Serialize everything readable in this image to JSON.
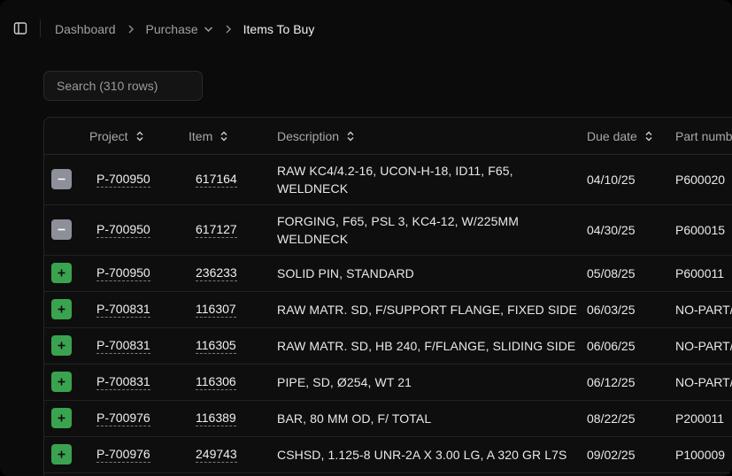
{
  "header": {
    "breadcrumb": {
      "dashboard": "Dashboard",
      "purchase": "Purchase",
      "current": "Items To Buy"
    }
  },
  "search": {
    "placeholder": "Search (310 rows)"
  },
  "table": {
    "columns": {
      "project": "Project",
      "item": "Item",
      "description": "Description",
      "due_date": "Due date",
      "part_number": "Part numb"
    },
    "rows": [
      {
        "action": "remove",
        "project": "P-700950",
        "item": "617164",
        "description_line1": "RAW KC4/4.2-16, UCON-H-18, ID11, F65,",
        "description_line2": "WELDNECK",
        "due_date": "04/10/25",
        "part_number": "P600020"
      },
      {
        "action": "remove",
        "project": "P-700950",
        "item": "617127",
        "description_line1": "FORGING, F65, PSL 3, KC4-12, W/225MM",
        "description_line2": "WELDNECK",
        "due_date": "04/30/25",
        "part_number": "P600015"
      },
      {
        "action": "add",
        "project": "P-700950",
        "item": "236233",
        "description_line1": "SOLID PIN, STANDARD",
        "description_line2": "",
        "due_date": "05/08/25",
        "part_number": "P600011"
      },
      {
        "action": "add",
        "project": "P-700831",
        "item": "116307",
        "description_line1": "RAW MATR. SD, F/SUPPORT FLANGE, FIXED SIDE",
        "description_line2": "",
        "due_date": "06/03/25",
        "part_number": "NO-PART/"
      },
      {
        "action": "add",
        "project": "P-700831",
        "item": "116305",
        "description_line1": "RAW MATR. SD, HB 240, F/FLANGE, SLIDING SIDE",
        "description_line2": "",
        "due_date": "06/06/25",
        "part_number": "NO-PART/"
      },
      {
        "action": "add",
        "project": "P-700831",
        "item": "116306",
        "description_line1": "PIPE, SD, Ø254, WT 21",
        "description_line2": "",
        "due_date": "06/12/25",
        "part_number": "NO-PART/"
      },
      {
        "action": "add",
        "project": "P-700976",
        "item": "116389",
        "description_line1": "BAR, 80 MM OD, F/ TOTAL",
        "description_line2": "",
        "due_date": "08/22/25",
        "part_number": "P200011"
      },
      {
        "action": "add",
        "project": "P-700976",
        "item": "249743",
        "description_line1": "CSHSD, 1.125-8 UNR-2A X 3.00 LG, A 320 GR L7S",
        "description_line2": "",
        "due_date": "09/02/25",
        "part_number": "P100009"
      }
    ]
  },
  "colors": {
    "remove_button": "#8e9099",
    "add_button": "#3aa34f",
    "background": "#0b0b0b"
  },
  "icons": {
    "sidebar_toggle": "sidebar-panel-icon",
    "breadcrumb_separator": "chevron-right-icon",
    "dropdown": "chevron-down-icon",
    "sort": "sort-updown-icon",
    "remove": "minus-icon",
    "add": "plus-icon"
  }
}
